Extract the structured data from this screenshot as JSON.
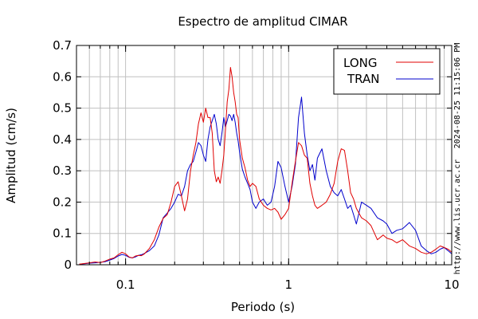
{
  "chart_data": {
    "type": "line",
    "title": "Espectro de amplitud CIMAR",
    "xlabel": "Periodo (s)",
    "ylabel": "Amplitud (cm/s)",
    "x_scale": "log",
    "xlim": [
      0.05,
      10
    ],
    "ylim": [
      0,
      0.7
    ],
    "x_ticks": [
      {
        "value": 0.1,
        "label": "0.1"
      },
      {
        "value": 1,
        "label": "1"
      },
      {
        "value": 10,
        "label": "10"
      }
    ],
    "y_ticks": [
      {
        "value": 0,
        "label": "0"
      },
      {
        "value": 0.1,
        "label": "0.1"
      },
      {
        "value": 0.2,
        "label": "0.2"
      },
      {
        "value": 0.3,
        "label": "0.3"
      },
      {
        "value": 0.4,
        "label": "0.4"
      },
      {
        "value": 0.5,
        "label": "0.5"
      },
      {
        "value": 0.6,
        "label": "0.6"
      },
      {
        "value": 0.7,
        "label": "0.7"
      }
    ],
    "grid": true,
    "legend_position": "top-right",
    "series": [
      {
        "name": "LONG",
        "color": "#e00000",
        "points": [
          [
            0.052,
            0.002
          ],
          [
            0.056,
            0.004
          ],
          [
            0.06,
            0.006
          ],
          [
            0.065,
            0.009
          ],
          [
            0.07,
            0.007
          ],
          [
            0.075,
            0.012
          ],
          [
            0.08,
            0.018
          ],
          [
            0.085,
            0.022
          ],
          [
            0.09,
            0.032
          ],
          [
            0.095,
            0.04
          ],
          [
            0.1,
            0.035
          ],
          [
            0.105,
            0.025
          ],
          [
            0.11,
            0.022
          ],
          [
            0.115,
            0.028
          ],
          [
            0.12,
            0.03
          ],
          [
            0.125,
            0.029
          ],
          [
            0.13,
            0.034
          ],
          [
            0.14,
            0.052
          ],
          [
            0.15,
            0.08
          ],
          [
            0.16,
            0.12
          ],
          [
            0.17,
            0.148
          ],
          [
            0.18,
            0.16
          ],
          [
            0.19,
            0.2
          ],
          [
            0.2,
            0.25
          ],
          [
            0.21,
            0.265
          ],
          [
            0.22,
            0.22
          ],
          [
            0.23,
            0.172
          ],
          [
            0.24,
            0.21
          ],
          [
            0.25,
            0.3
          ],
          [
            0.26,
            0.35
          ],
          [
            0.27,
            0.39
          ],
          [
            0.28,
            0.45
          ],
          [
            0.29,
            0.485
          ],
          [
            0.3,
            0.455
          ],
          [
            0.31,
            0.5
          ],
          [
            0.32,
            0.47
          ],
          [
            0.33,
            0.47
          ],
          [
            0.34,
            0.42
          ],
          [
            0.35,
            0.3
          ],
          [
            0.36,
            0.265
          ],
          [
            0.37,
            0.28
          ],
          [
            0.38,
            0.26
          ],
          [
            0.39,
            0.3
          ],
          [
            0.4,
            0.35
          ],
          [
            0.41,
            0.43
          ],
          [
            0.42,
            0.52
          ],
          [
            0.43,
            0.56
          ],
          [
            0.44,
            0.63
          ],
          [
            0.45,
            0.6
          ],
          [
            0.46,
            0.55
          ],
          [
            0.47,
            0.52
          ],
          [
            0.48,
            0.48
          ],
          [
            0.49,
            0.47
          ],
          [
            0.5,
            0.4
          ],
          [
            0.52,
            0.34
          ],
          [
            0.54,
            0.31
          ],
          [
            0.56,
            0.27
          ],
          [
            0.58,
            0.25
          ],
          [
            0.6,
            0.26
          ],
          [
            0.63,
            0.25
          ],
          [
            0.66,
            0.21
          ],
          [
            0.7,
            0.19
          ],
          [
            0.74,
            0.18
          ],
          [
            0.78,
            0.175
          ],
          [
            0.82,
            0.18
          ],
          [
            0.86,
            0.168
          ],
          [
            0.9,
            0.145
          ],
          [
            0.95,
            0.16
          ],
          [
            1.0,
            0.18
          ],
          [
            1.05,
            0.26
          ],
          [
            1.1,
            0.33
          ],
          [
            1.15,
            0.39
          ],
          [
            1.2,
            0.38
          ],
          [
            1.25,
            0.35
          ],
          [
            1.3,
            0.34
          ],
          [
            1.35,
            0.26
          ],
          [
            1.4,
            0.22
          ],
          [
            1.45,
            0.19
          ],
          [
            1.5,
            0.18
          ],
          [
            1.6,
            0.19
          ],
          [
            1.7,
            0.2
          ],
          [
            1.8,
            0.225
          ],
          [
            1.9,
            0.26
          ],
          [
            2.0,
            0.33
          ],
          [
            2.1,
            0.37
          ],
          [
            2.2,
            0.365
          ],
          [
            2.3,
            0.3
          ],
          [
            2.4,
            0.23
          ],
          [
            2.5,
            0.21
          ],
          [
            2.6,
            0.18
          ],
          [
            2.8,
            0.15
          ],
          [
            3.0,
            0.14
          ],
          [
            3.2,
            0.125
          ],
          [
            3.5,
            0.08
          ],
          [
            3.8,
            0.095
          ],
          [
            4.0,
            0.085
          ],
          [
            4.3,
            0.08
          ],
          [
            4.6,
            0.07
          ],
          [
            5.0,
            0.08
          ],
          [
            5.5,
            0.06
          ],
          [
            6.0,
            0.052
          ],
          [
            6.5,
            0.04
          ],
          [
            7.0,
            0.035
          ],
          [
            7.5,
            0.04
          ],
          [
            8.0,
            0.05
          ],
          [
            8.5,
            0.06
          ],
          [
            9.0,
            0.055
          ],
          [
            9.5,
            0.05
          ],
          [
            10.0,
            0.04
          ]
        ]
      },
      {
        "name": "TRAN",
        "color": "#0000cc",
        "points": [
          [
            0.052,
            0.002
          ],
          [
            0.056,
            0.003
          ],
          [
            0.06,
            0.005
          ],
          [
            0.065,
            0.006
          ],
          [
            0.07,
            0.008
          ],
          [
            0.075,
            0.01
          ],
          [
            0.08,
            0.015
          ],
          [
            0.085,
            0.02
          ],
          [
            0.09,
            0.028
          ],
          [
            0.095,
            0.033
          ],
          [
            0.1,
            0.03
          ],
          [
            0.105,
            0.024
          ],
          [
            0.11,
            0.022
          ],
          [
            0.115,
            0.025
          ],
          [
            0.12,
            0.03
          ],
          [
            0.125,
            0.032
          ],
          [
            0.13,
            0.036
          ],
          [
            0.14,
            0.045
          ],
          [
            0.15,
            0.06
          ],
          [
            0.16,
            0.095
          ],
          [
            0.17,
            0.15
          ],
          [
            0.18,
            0.165
          ],
          [
            0.19,
            0.18
          ],
          [
            0.2,
            0.2
          ],
          [
            0.21,
            0.225
          ],
          [
            0.22,
            0.22
          ],
          [
            0.23,
            0.25
          ],
          [
            0.24,
            0.3
          ],
          [
            0.25,
            0.32
          ],
          [
            0.26,
            0.33
          ],
          [
            0.27,
            0.36
          ],
          [
            0.28,
            0.39
          ],
          [
            0.29,
            0.38
          ],
          [
            0.3,
            0.35
          ],
          [
            0.31,
            0.33
          ],
          [
            0.32,
            0.4
          ],
          [
            0.33,
            0.44
          ],
          [
            0.34,
            0.46
          ],
          [
            0.35,
            0.48
          ],
          [
            0.36,
            0.45
          ],
          [
            0.37,
            0.4
          ],
          [
            0.38,
            0.38
          ],
          [
            0.39,
            0.42
          ],
          [
            0.4,
            0.47
          ],
          [
            0.41,
            0.44
          ],
          [
            0.42,
            0.46
          ],
          [
            0.43,
            0.48
          ],
          [
            0.44,
            0.475
          ],
          [
            0.45,
            0.46
          ],
          [
            0.46,
            0.48
          ],
          [
            0.47,
            0.455
          ],
          [
            0.48,
            0.42
          ],
          [
            0.49,
            0.395
          ],
          [
            0.5,
            0.36
          ],
          [
            0.52,
            0.305
          ],
          [
            0.54,
            0.28
          ],
          [
            0.56,
            0.26
          ],
          [
            0.58,
            0.24
          ],
          [
            0.6,
            0.2
          ],
          [
            0.63,
            0.18
          ],
          [
            0.66,
            0.2
          ],
          [
            0.7,
            0.21
          ],
          [
            0.74,
            0.19
          ],
          [
            0.78,
            0.2
          ],
          [
            0.82,
            0.25
          ],
          [
            0.86,
            0.33
          ],
          [
            0.9,
            0.31
          ],
          [
            0.95,
            0.25
          ],
          [
            1.0,
            0.2
          ],
          [
            1.05,
            0.25
          ],
          [
            1.1,
            0.32
          ],
          [
            1.15,
            0.47
          ],
          [
            1.2,
            0.535
          ],
          [
            1.25,
            0.42
          ],
          [
            1.3,
            0.35
          ],
          [
            1.35,
            0.3
          ],
          [
            1.4,
            0.32
          ],
          [
            1.45,
            0.27
          ],
          [
            1.5,
            0.34
          ],
          [
            1.6,
            0.37
          ],
          [
            1.7,
            0.3
          ],
          [
            1.8,
            0.25
          ],
          [
            1.9,
            0.23
          ],
          [
            2.0,
            0.22
          ],
          [
            2.1,
            0.24
          ],
          [
            2.2,
            0.21
          ],
          [
            2.3,
            0.18
          ],
          [
            2.4,
            0.19
          ],
          [
            2.5,
            0.16
          ],
          [
            2.6,
            0.13
          ],
          [
            2.8,
            0.2
          ],
          [
            3.0,
            0.19
          ],
          [
            3.2,
            0.18
          ],
          [
            3.5,
            0.15
          ],
          [
            3.8,
            0.14
          ],
          [
            4.0,
            0.13
          ],
          [
            4.3,
            0.1
          ],
          [
            4.6,
            0.11
          ],
          [
            5.0,
            0.115
          ],
          [
            5.5,
            0.135
          ],
          [
            6.0,
            0.11
          ],
          [
            6.5,
            0.06
          ],
          [
            7.0,
            0.045
          ],
          [
            7.5,
            0.035
          ],
          [
            8.0,
            0.04
          ],
          [
            8.5,
            0.05
          ],
          [
            9.0,
            0.055
          ],
          [
            9.5,
            0.045
          ],
          [
            10.0,
            0.035
          ]
        ]
      }
    ],
    "annotations": [
      "2024-08-25 11:15:06 PM",
      "http://www.lis.ucr.ac.cr"
    ]
  }
}
